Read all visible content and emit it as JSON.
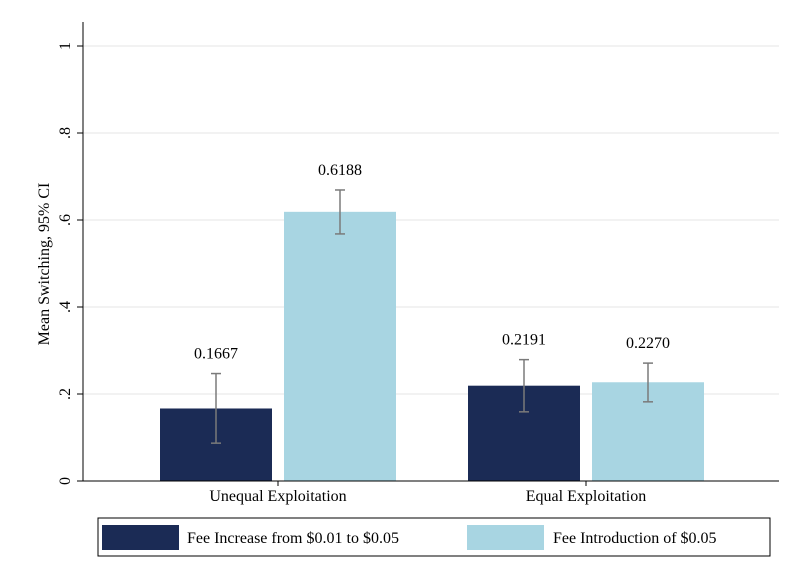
{
  "chart_data": {
    "type": "bar",
    "title": "",
    "xlabel": "",
    "ylabel": "Mean Switching, 95% CI",
    "ylim": [
      0,
      1
    ],
    "yticks": [
      0,
      0.2,
      0.4,
      0.6,
      0.8,
      1
    ],
    "ytick_labels": [
      "0",
      ".2",
      ".4",
      ".6",
      ".8",
      "1"
    ],
    "grid": true,
    "legend_position": "bottom",
    "categories": [
      "Unequal Exploitation",
      "Equal Exploitation"
    ],
    "series": [
      {
        "name": "Fee Increase from $0.01 to $0.05",
        "color": "#1b2b55",
        "values": [
          0.1667,
          0.2191
        ],
        "value_labels": [
          "0.1667",
          "0.2191"
        ],
        "ci_low": [
          0.087,
          0.159
        ],
        "ci_high": [
          0.247,
          0.279
        ]
      },
      {
        "name": "Fee Introduction of $0.05",
        "color": "#a8d5e2",
        "values": [
          0.6188,
          0.227
        ],
        "value_labels": [
          "0.6188",
          "0.2270"
        ],
        "ci_low": [
          0.568,
          0.182
        ],
        "ci_high": [
          0.669,
          0.271
        ]
      }
    ],
    "errorbar_color": "#7a7a7a",
    "grid_color": "#e6e6e6"
  }
}
